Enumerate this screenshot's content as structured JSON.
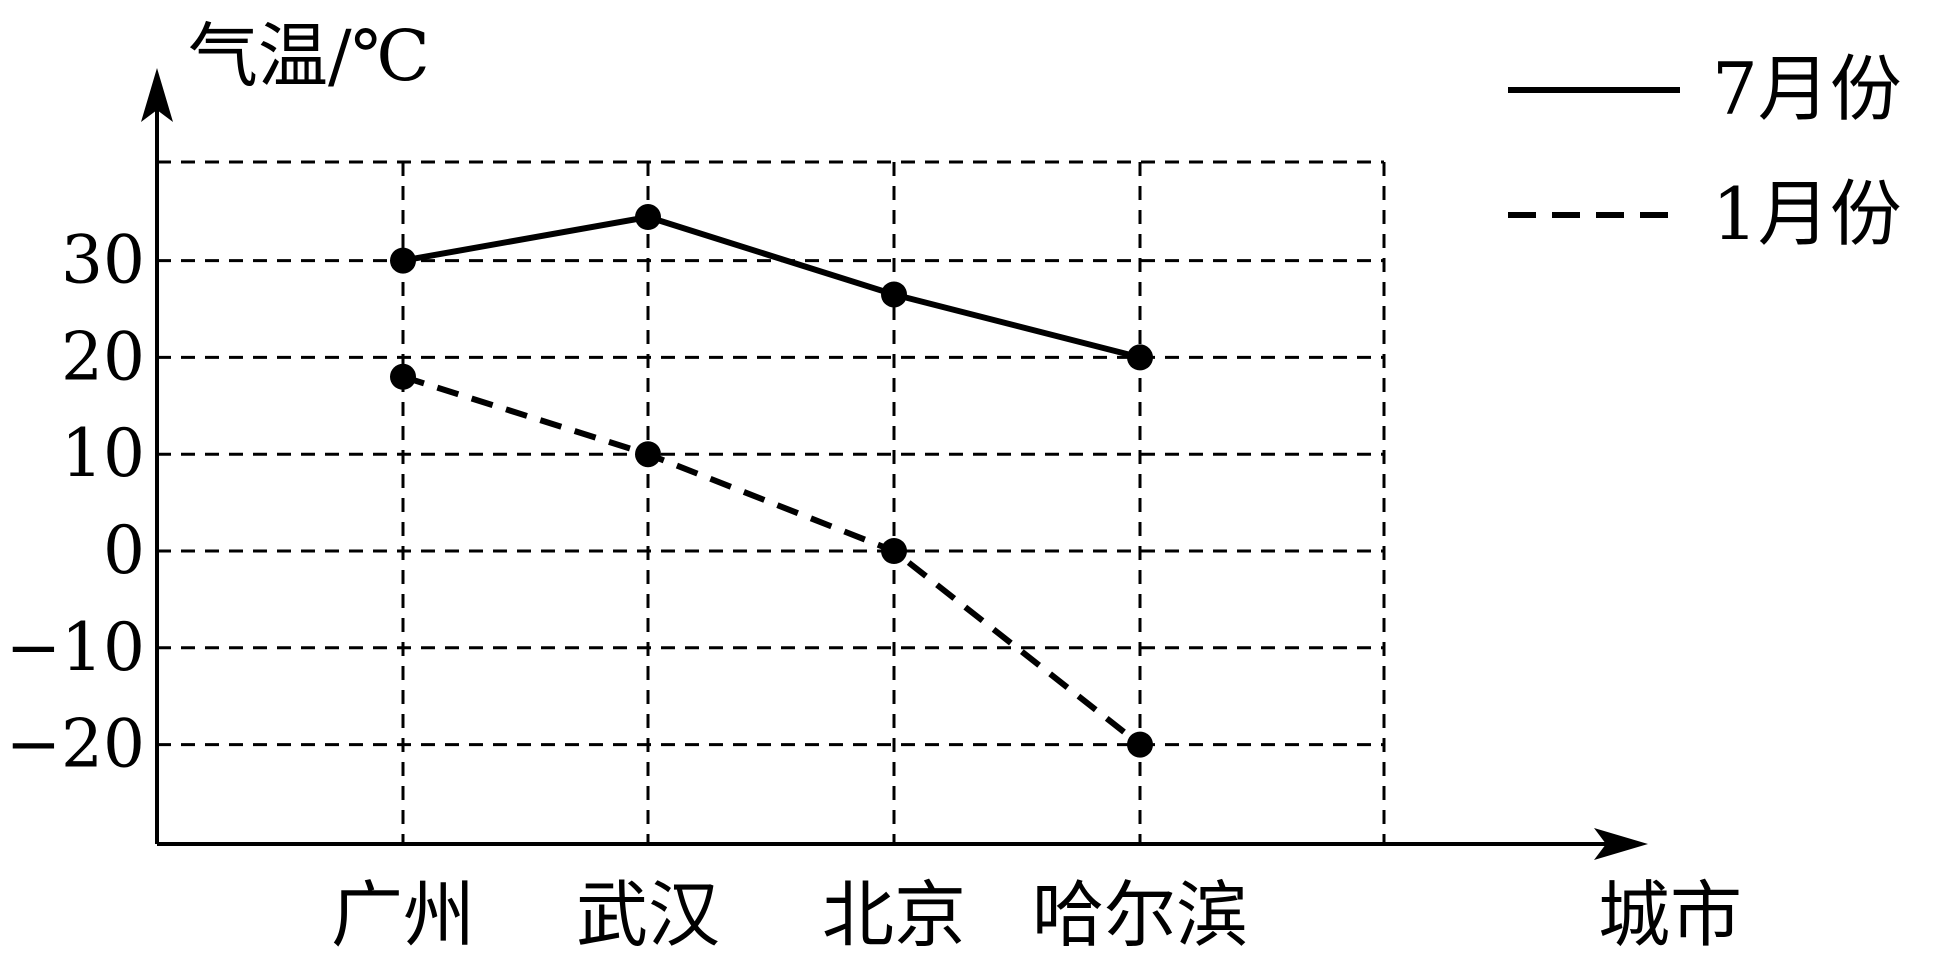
{
  "chart_data": {
    "type": "line",
    "ylabel": "气温/℃",
    "xlabel": "城市",
    "categories": [
      "广州",
      "武汉",
      "北京",
      "哈尔滨"
    ],
    "yticks": [
      30,
      20,
      10,
      0,
      -10,
      -20
    ],
    "ytick_labels": [
      "30",
      "20",
      "10",
      "0",
      "−10",
      "−20"
    ],
    "ylim": [
      -30,
      40
    ],
    "grid": true,
    "legend_position": "top-right",
    "series": [
      {
        "name": "7月份",
        "style": "solid",
        "values": [
          30,
          34.5,
          26.5,
          20
        ]
      },
      {
        "name": "1月份",
        "style": "dashed",
        "values": [
          18,
          10,
          0,
          -20
        ]
      }
    ],
    "colors": {
      "ink": "#000000",
      "background": "#ffffff"
    }
  }
}
